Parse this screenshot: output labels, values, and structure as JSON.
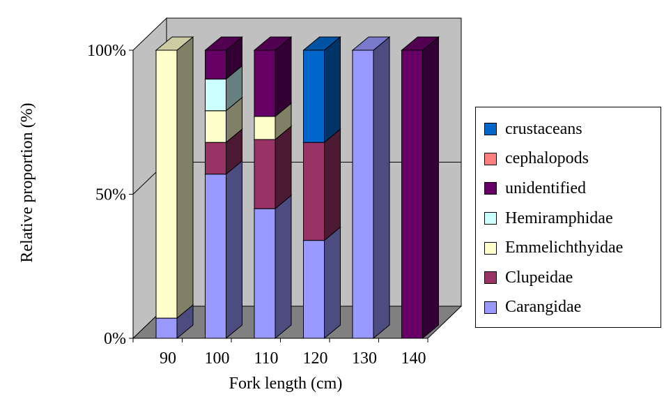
{
  "chart_data": {
    "type": "bar",
    "stacked": true,
    "percent": true,
    "three_d": true,
    "categories": [
      "90",
      "100",
      "110",
      "120",
      "130",
      "140"
    ],
    "series": [
      {
        "name": "Carangidae",
        "color": "#9999ff",
        "side": "#4c4c80",
        "top": "#7a7acc",
        "values": [
          7,
          57,
          45,
          34,
          100,
          0
        ]
      },
      {
        "name": "Clupeidae",
        "color": "#993366",
        "side": "#4c1a33",
        "top": "#7a2952",
        "values": [
          0,
          11,
          24,
          34,
          0,
          0
        ]
      },
      {
        "name": "Emmelichthyidae",
        "color": "#ffffcc",
        "side": "#808066",
        "top": "#cccca3",
        "values": [
          93,
          11,
          8,
          0,
          0,
          0
        ]
      },
      {
        "name": "Hemiramphidae",
        "color": "#ccffff",
        "side": "#668080",
        "top": "#a3cccc",
        "values": [
          0,
          11,
          0,
          0,
          0,
          0
        ]
      },
      {
        "name": "unidentified",
        "color": "#660066",
        "side": "#330033",
        "top": "#520052",
        "values": [
          0,
          10,
          23,
          0,
          0,
          100
        ]
      },
      {
        "name": "cephalopods",
        "color": "#ff8080",
        "side": "#804040",
        "top": "#cc6666",
        "values": [
          0,
          0,
          0,
          0,
          0,
          0
        ]
      },
      {
        "name": "crustaceans",
        "color": "#0066cc",
        "side": "#003366",
        "top": "#0052a3",
        "values": [
          0,
          0,
          0,
          32,
          0,
          0
        ]
      }
    ],
    "legend_order": [
      "crustaceans",
      "cephalopods",
      "unidentified",
      "Hemiramphidae",
      "Emmelichthyidae",
      "Clupeidae",
      "Carangidae"
    ],
    "y_ticks": [
      "0%",
      "50%",
      "100%"
    ],
    "ylim": [
      0,
      100
    ],
    "xlabel": "Fork length (cm)",
    "ylabel": "Relative proportion (%)",
    "legend_position": "right",
    "colors": {
      "wall": "#c0c0c0",
      "floor": "#808080",
      "gridline": "#000000"
    }
  }
}
